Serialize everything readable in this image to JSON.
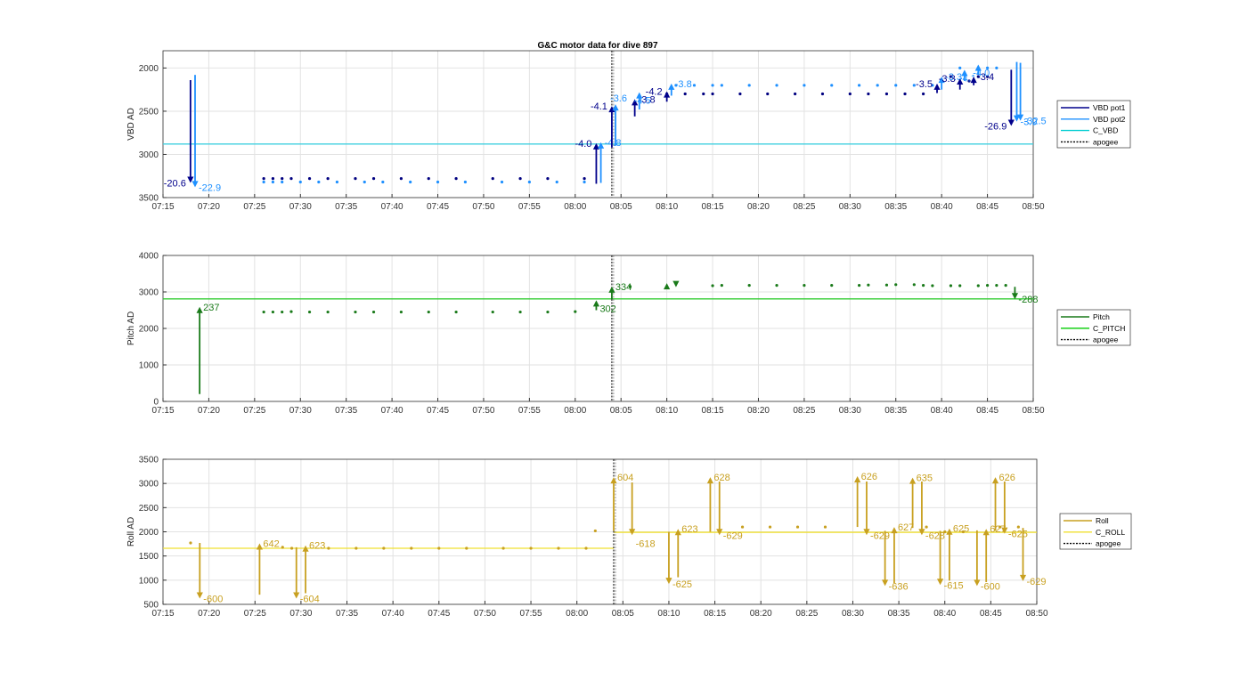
{
  "figure_title": "G&C motor data for dive 897",
  "chart_data": [
    {
      "type": "line",
      "ylabel": "VBD AD",
      "xlim": [
        "07:15",
        "08:50"
      ],
      "ylim": [
        1800,
        3500
      ],
      "y_reversed": true,
      "yticks": [
        2000,
        2500,
        3000,
        3500
      ],
      "xticks": [
        "07:15",
        "07:20",
        "07:25",
        "07:30",
        "07:35",
        "07:40",
        "07:45",
        "07:50",
        "07:55",
        "08:00",
        "08:05",
        "08:10",
        "08:15",
        "08:20",
        "08:25",
        "08:30",
        "08:35",
        "08:40",
        "08:45",
        "08:50"
      ],
      "grid": true,
      "legend": {
        "placement": "outside-right",
        "entries": [
          {
            "name": "VBD pot1",
            "color": "#00008b",
            "style": "solid"
          },
          {
            "name": "VBD pot2",
            "color": "#1e90ff",
            "style": "solid"
          },
          {
            "name": "C_VBD",
            "color": "#00ced1",
            "style": "solid"
          },
          {
            "name": "apogee",
            "color": "#000000",
            "style": "dotted"
          }
        ]
      },
      "reference_lines": [
        {
          "name": "C_VBD",
          "y": 2880,
          "color": "#40d0e0"
        }
      ],
      "apogee": "08:04",
      "series": [
        {
          "name": "VBD pot1",
          "color": "#000080",
          "x": [
            "07:26",
            "07:27",
            "07:28",
            "07:29",
            "07:31",
            "07:33",
            "07:36",
            "07:38",
            "07:41",
            "07:44",
            "07:47",
            "07:51",
            "07:54",
            "07:57",
            "08:01",
            "08:10",
            "08:12",
            "08:14",
            "08:15",
            "08:18",
            "08:21",
            "08:24",
            "08:27",
            "08:30",
            "08:32",
            "08:34",
            "08:36",
            "08:38",
            "08:41",
            "08:43",
            "08:44",
            "08:45"
          ],
          "y": [
            3280,
            3280,
            3280,
            3280,
            3280,
            3280,
            3280,
            3280,
            3280,
            3280,
            3280,
            3280,
            3280,
            3280,
            3280,
            2300,
            2300,
            2300,
            2300,
            2300,
            2300,
            2300,
            2300,
            2300,
            2300,
            2300,
            2300,
            2300,
            2100,
            2150,
            2100,
            2100
          ]
        },
        {
          "name": "VBD pot2",
          "color": "#1e90ff",
          "x": [
            "07:26",
            "07:27",
            "07:28",
            "07:30",
            "07:32",
            "07:34",
            "07:37",
            "07:39",
            "07:42",
            "07:45",
            "07:48",
            "07:52",
            "07:55",
            "07:58",
            "08:01",
            "08:11",
            "08:13",
            "08:15",
            "08:16",
            "08:19",
            "08:22",
            "08:25",
            "08:28",
            "08:31",
            "08:33",
            "08:35",
            "08:37",
            "08:39",
            "08:42",
            "08:44",
            "08:45",
            "08:46"
          ],
          "y": [
            3320,
            3320,
            3320,
            3320,
            3320,
            3320,
            3320,
            3320,
            3320,
            3320,
            3320,
            3320,
            3320,
            3320,
            3320,
            2200,
            2200,
            2200,
            2200,
            2200,
            2200,
            2200,
            2200,
            2200,
            2200,
            2200,
            2200,
            2200,
            2000,
            2000,
            2000,
            2000
          ]
        }
      ],
      "arrows": [
        {
          "x": "07:18",
          "from": 2140,
          "to": 3330,
          "color": "#00008b",
          "label": "-20.6",
          "label_side": "left"
        },
        {
          "x": "07:18.5",
          "from": 2080,
          "to": 3380,
          "color": "#1e90ff",
          "label": "-22.9",
          "label_side": "right"
        },
        {
          "x": "08:02.3",
          "from": 3340,
          "to": 2870,
          "color": "#00008b",
          "label": "-4.0",
          "label_side": "left"
        },
        {
          "x": "08:02.8",
          "from": 3330,
          "to": 2860,
          "color": "#1e90ff",
          "label": "-4.8",
          "label_side": "right"
        },
        {
          "x": "08:04",
          "from": 2920,
          "to": 2440,
          "color": "#00008b",
          "label": "-4.1",
          "label_side": "left"
        },
        {
          "x": "08:04.4",
          "from": 2900,
          "to": 2420,
          "color": "#1e90ff",
          "label": "-3.6",
          "label_side": "top"
        },
        {
          "x": "08:06.5",
          "from": 2560,
          "to": 2360,
          "color": "#00008b",
          "label": "-3.8",
          "label_side": "right"
        },
        {
          "x": "08:07",
          "from": 2480,
          "to": 2280,
          "color": "#1e90ff",
          "label": "-4.5",
          "label_side": "below"
        },
        {
          "x": "08:10",
          "from": 2390,
          "to": 2270,
          "color": "#00008b",
          "label": "-4.2",
          "label_side": "left"
        },
        {
          "x": "08:10.5",
          "from": 2320,
          "to": 2180,
          "color": "#1e90ff",
          "label": "-3.8",
          "label_side": "right"
        },
        {
          "x": "08:39.5",
          "from": 2290,
          "to": 2180,
          "color": "#00008b",
          "label": "-3.5",
          "label_side": "left"
        },
        {
          "x": "08:40",
          "from": 2250,
          "to": 2100,
          "color": "#1e90ff",
          "label": "-3.3",
          "label_side": "right"
        },
        {
          "x": "08:42",
          "from": 2250,
          "to": 2120,
          "color": "#00008b",
          "label": "-3.3",
          "label_side": "left"
        },
        {
          "x": "08:42.5",
          "from": 2150,
          "to": 2020,
          "color": "#1e90ff",
          "label": "-4.1",
          "label_side": "below"
        },
        {
          "x": "08:43.5",
          "from": 2200,
          "to": 2100,
          "color": "#00008b",
          "label": "-3.4",
          "label_side": "right"
        },
        {
          "x": "08:44",
          "from": 2080,
          "to": 1960,
          "color": "#1e90ff",
          "label": "-4.0",
          "label_side": "below"
        },
        {
          "x": "08:47.6",
          "from": 2020,
          "to": 2670,
          "color": "#00008b",
          "label": "-26.9",
          "label_side": "left"
        },
        {
          "x": "08:48.2",
          "from": 1930,
          "to": 2620,
          "color": "#1e90ff",
          "label": "-3.9",
          "label_side": "right"
        },
        {
          "x": "08:48.6",
          "from": 1940,
          "to": 2610,
          "color": "#1e90ff",
          "label": "-32.5",
          "label_side": "right"
        }
      ]
    },
    {
      "type": "line",
      "ylabel": "Pitch AD",
      "xlim": [
        "07:15",
        "08:50"
      ],
      "ylim": [
        0,
        4000
      ],
      "yticks": [
        0,
        1000,
        2000,
        3000,
        4000
      ],
      "xticks": [
        "07:15",
        "07:20",
        "07:25",
        "07:30",
        "07:35",
        "07:40",
        "07:45",
        "07:50",
        "07:55",
        "08:00",
        "08:05",
        "08:10",
        "08:15",
        "08:20",
        "08:25",
        "08:30",
        "08:35",
        "08:40",
        "08:45",
        "08:50"
      ],
      "grid": true,
      "legend": {
        "placement": "outside-right",
        "entries": [
          {
            "name": "Pitch",
            "color": "#1a7a1a",
            "style": "solid"
          },
          {
            "name": "C_PITCH",
            "color": "#00cc00",
            "style": "solid"
          },
          {
            "name": "apogee",
            "color": "#000000",
            "style": "dotted"
          }
        ]
      },
      "reference_lines": [
        {
          "name": "C_PITCH",
          "y": 2810,
          "color": "#33cc33"
        }
      ],
      "apogee": "08:04",
      "series": [
        {
          "name": "Pitch",
          "color": "#1a7a1a",
          "x": [
            "07:26",
            "07:27",
            "07:28",
            "07:29",
            "07:31",
            "07:33",
            "07:36",
            "07:38",
            "07:41",
            "07:44",
            "07:47",
            "07:51",
            "07:54",
            "07:57",
            "08:00",
            "08:06",
            "08:15",
            "08:16",
            "08:19",
            "08:22",
            "08:25",
            "08:28",
            "08:31",
            "08:32",
            "08:34",
            "08:35",
            "08:37",
            "08:38",
            "08:39",
            "08:41",
            "08:42",
            "08:44",
            "08:45",
            "08:46",
            "08:47"
          ],
          "y": [
            2450,
            2450,
            2450,
            2460,
            2450,
            2450,
            2450,
            2450,
            2450,
            2450,
            2450,
            2450,
            2450,
            2450,
            2460,
            3150,
            3170,
            3180,
            3180,
            3180,
            3180,
            3180,
            3180,
            3190,
            3190,
            3200,
            3200,
            3180,
            3170,
            3170,
            3170,
            3170,
            3180,
            3180,
            3180
          ]
        }
      ],
      "arrows": [
        {
          "x": "07:19",
          "from": 200,
          "to": 2590,
          "color": "#1a7a1a",
          "label": "237",
          "label_side": "right"
        },
        {
          "x": "08:02.3",
          "from": 2500,
          "to": 2770,
          "color": "#1a7a1a",
          "label": "302",
          "label_side": "below-right"
        },
        {
          "x": "08:04",
          "from": 2800,
          "to": 3150,
          "color": "#1a7a1a",
          "label": "334",
          "label_side": "right"
        },
        {
          "x": "08:10",
          "from": 3180,
          "to": 3240,
          "color": "#1a7a1a",
          "label": "",
          "label_side": "none"
        },
        {
          "x": "08:11",
          "from": 3200,
          "to": 3130,
          "color": "#1a7a1a",
          "label": "",
          "label_side": "none"
        },
        {
          "x": "08:48",
          "from": 3140,
          "to": 2800,
          "color": "#1a7a1a",
          "label": "-288",
          "label_side": "right"
        }
      ]
    },
    {
      "type": "line",
      "ylabel": "Roll AD",
      "xlim": [
        "07:15",
        "08:50"
      ],
      "ylim": [
        500,
        3500
      ],
      "yticks": [
        500,
        1000,
        1500,
        2000,
        2500,
        3000,
        3500
      ],
      "xticks": [
        "07:15",
        "07:20",
        "07:25",
        "07:30",
        "07:35",
        "07:40",
        "07:45",
        "07:50",
        "07:55",
        "08:00",
        "08:05",
        "08:10",
        "08:15",
        "08:20",
        "08:25",
        "08:30",
        "08:35",
        "08:40",
        "08:45",
        "08:50"
      ],
      "grid": true,
      "legend": {
        "placement": "outside-right",
        "entries": [
          {
            "name": "Roll",
            "color": "#c8a020",
            "style": "solid"
          },
          {
            "name": "C_ROLL",
            "color": "#f0e030",
            "style": "solid"
          },
          {
            "name": "apogee",
            "color": "#000000",
            "style": "dotted"
          }
        ]
      },
      "reference_lines": [
        {
          "name": "C_ROLL",
          "y": 1660,
          "x_range": [
            "07:15",
            "08:04"
          ],
          "color": "#f0e030"
        },
        {
          "name": "C_ROLL",
          "y": 1990,
          "x_range": [
            "08:04",
            "08:50"
          ],
          "color": "#f0e030"
        }
      ],
      "apogee": "08:04",
      "series": [
        {
          "name": "Roll",
          "color": "#c8a020",
          "x": [
            "07:18",
            "07:28",
            "07:29",
            "07:33",
            "07:36",
            "07:39",
            "07:42",
            "07:45",
            "07:48",
            "07:52",
            "07:55",
            "07:58",
            "08:01",
            "08:02",
            "08:18",
            "08:21",
            "08:24",
            "08:27",
            "08:38",
            "08:40",
            "08:42",
            "08:46",
            "08:48"
          ],
          "y": [
            1770,
            1680,
            1660,
            1660,
            1660,
            1660,
            1660,
            1660,
            1660,
            1660,
            1660,
            1660,
            1660,
            2020,
            2100,
            2100,
            2100,
            2100,
            2100,
            2000,
            2000,
            2100,
            2100
          ]
        }
      ],
      "arrows": [
        {
          "x": "07:19",
          "from": 1770,
          "to": 620,
          "color": "#c8a020",
          "label": "-600",
          "label_side": "right"
        },
        {
          "x": "07:25.5",
          "from": 700,
          "to": 1760,
          "color": "#c8a020",
          "label": "642",
          "label_side": "right"
        },
        {
          "x": "07:29.5",
          "from": 1680,
          "to": 620,
          "color": "#c8a020",
          "label": "-604",
          "label_side": "right"
        },
        {
          "x": "07:30.5",
          "from": 730,
          "to": 1720,
          "color": "#c8a020",
          "label": "623",
          "label_side": "right"
        },
        {
          "x": "08:04",
          "from": 2020,
          "to": 3130,
          "color": "#c8a020",
          "label": "604",
          "label_side": "right"
        },
        {
          "x": "08:06",
          "from": 3020,
          "to": 1930,
          "color": "#c8a020",
          "label": "-618",
          "label_side": "below-right"
        },
        {
          "x": "08:10",
          "from": 2000,
          "to": 920,
          "color": "#c8a020",
          "label": "-625",
          "label_side": "right"
        },
        {
          "x": "08:11",
          "from": 1060,
          "to": 2060,
          "color": "#c8a020",
          "label": "623",
          "label_side": "right"
        },
        {
          "x": "08:14.5",
          "from": 2000,
          "to": 3130,
          "color": "#c8a020",
          "label": "628",
          "label_side": "right"
        },
        {
          "x": "08:15.5",
          "from": 3040,
          "to": 1930,
          "color": "#c8a020",
          "label": "-629",
          "label_side": "right"
        },
        {
          "x": "08:30.5",
          "from": 2100,
          "to": 3150,
          "color": "#c8a020",
          "label": "626",
          "label_side": "right"
        },
        {
          "x": "08:31.5",
          "from": 3040,
          "to": 1930,
          "color": "#c8a020",
          "label": "-629",
          "label_side": "right"
        },
        {
          "x": "08:33.5",
          "from": 2020,
          "to": 880,
          "color": "#c8a020",
          "label": "-636",
          "label_side": "right"
        },
        {
          "x": "08:34.5",
          "from": 940,
          "to": 2100,
          "color": "#c8a020",
          "label": "627",
          "label_side": "right"
        },
        {
          "x": "08:36.5",
          "from": 2080,
          "to": 3120,
          "color": "#c8a020",
          "label": "635",
          "label_side": "right"
        },
        {
          "x": "08:37.5",
          "from": 3040,
          "to": 1930,
          "color": "#c8a020",
          "label": "-628",
          "label_side": "right"
        },
        {
          "x": "08:39.5",
          "from": 2020,
          "to": 900,
          "color": "#c8a020",
          "label": "-615",
          "label_side": "right"
        },
        {
          "x": "08:40.5",
          "from": 990,
          "to": 2070,
          "color": "#c8a020",
          "label": "625",
          "label_side": "right"
        },
        {
          "x": "08:43.5",
          "from": 2030,
          "to": 880,
          "color": "#c8a020",
          "label": "-600",
          "label_side": "right"
        },
        {
          "x": "08:44.5",
          "from": 960,
          "to": 2060,
          "color": "#c8a020",
          "label": "627",
          "label_side": "right"
        },
        {
          "x": "08:45.5",
          "from": 2020,
          "to": 3130,
          "color": "#c8a020",
          "label": "626",
          "label_side": "right"
        },
        {
          "x": "08:46.5",
          "from": 3040,
          "to": 1960,
          "color": "#c8a020",
          "label": "-625",
          "label_side": "right"
        },
        {
          "x": "08:48.5",
          "from": 2080,
          "to": 980,
          "color": "#c8a020",
          "label": "-629",
          "label_side": "right"
        }
      ]
    }
  ]
}
